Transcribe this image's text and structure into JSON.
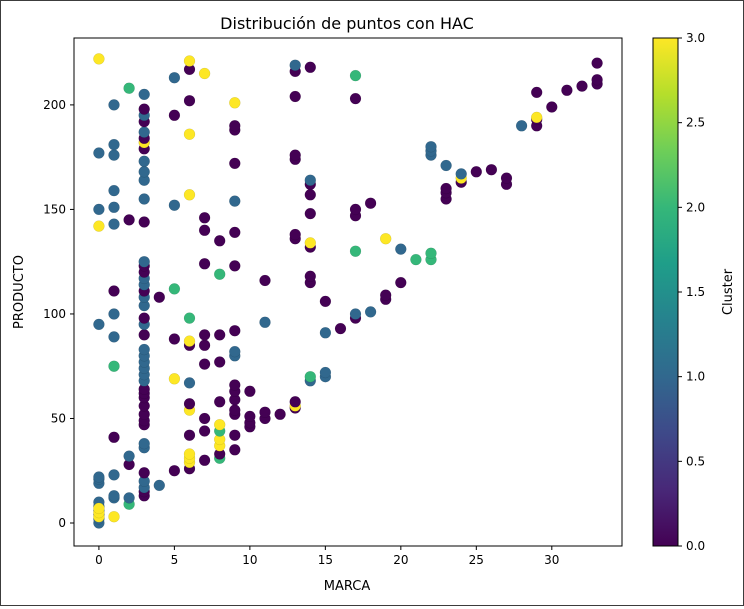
{
  "chart_data": {
    "type": "scatter",
    "title": "Distribución de puntos con HAC",
    "xlabel": "MARCA",
    "ylabel": "PRODUCTO",
    "xlim": [
      -1.65,
      34.65
    ],
    "ylim": [
      -11,
      232
    ],
    "xticks": [
      0,
      5,
      10,
      15,
      20,
      25,
      30
    ],
    "yticks": [
      0,
      50,
      100,
      150,
      200
    ],
    "grid": false,
    "colormap": "viridis",
    "colorbar": {
      "label": "Cluster",
      "range": [
        0,
        3
      ],
      "ticks": [
        "0.0",
        "0.5",
        "1.0",
        "1.5",
        "2.0",
        "2.5",
        "3.0"
      ]
    },
    "cluster_colors": [
      "#440154",
      "#31688e",
      "#35b779",
      "#fde725"
    ],
    "points": [
      [
        0,
        0,
        1
      ],
      [
        0,
        2,
        1
      ],
      [
        0,
        4,
        1
      ],
      [
        0,
        6,
        1
      ],
      [
        0,
        8,
        1
      ],
      [
        0,
        10,
        1
      ],
      [
        0,
        19,
        1
      ],
      [
        0,
        21,
        1
      ],
      [
        0,
        22,
        1
      ],
      [
        0,
        95,
        1
      ],
      [
        0,
        150,
        1
      ],
      [
        0,
        177,
        1
      ],
      [
        0,
        3,
        3
      ],
      [
        0,
        5,
        3
      ],
      [
        0,
        7,
        3
      ],
      [
        0,
        142,
        3
      ],
      [
        0,
        222,
        3
      ],
      [
        1,
        3,
        3
      ],
      [
        1,
        12,
        1
      ],
      [
        1,
        13,
        1
      ],
      [
        1,
        23,
        1
      ],
      [
        1,
        41,
        0
      ],
      [
        1,
        75,
        2
      ],
      [
        1,
        89,
        1
      ],
      [
        1,
        100,
        1
      ],
      [
        1,
        111,
        0
      ],
      [
        1,
        143,
        1
      ],
      [
        1,
        151,
        1
      ],
      [
        1,
        159,
        1
      ],
      [
        1,
        176,
        1
      ],
      [
        1,
        181,
        1
      ],
      [
        1,
        200,
        1
      ],
      [
        2,
        9,
        2
      ],
      [
        2,
        12,
        1
      ],
      [
        2,
        28,
        0
      ],
      [
        2,
        32,
        1
      ],
      [
        2,
        145,
        0
      ],
      [
        2,
        208,
        2
      ],
      [
        3,
        13,
        0
      ],
      [
        3,
        15,
        0
      ],
      [
        3,
        17,
        1
      ],
      [
        3,
        20,
        1
      ],
      [
        3,
        24,
        0
      ],
      [
        3,
        36,
        1
      ],
      [
        3,
        38,
        1
      ],
      [
        3,
        47,
        0
      ],
      [
        3,
        49,
        0
      ],
      [
        3,
        52,
        0
      ],
      [
        3,
        56,
        0
      ],
      [
        3,
        60,
        0
      ],
      [
        3,
        62,
        0
      ],
      [
        3,
        64,
        0
      ],
      [
        3,
        68,
        1
      ],
      [
        3,
        71,
        1
      ],
      [
        3,
        74,
        1
      ],
      [
        3,
        77,
        1
      ],
      [
        3,
        80,
        1
      ],
      [
        3,
        83,
        1
      ],
      [
        3,
        90,
        0
      ],
      [
        3,
        95,
        1
      ],
      [
        3,
        98,
        0
      ],
      [
        3,
        104,
        1
      ],
      [
        3,
        108,
        1
      ],
      [
        3,
        111,
        0
      ],
      [
        3,
        114,
        1
      ],
      [
        3,
        117,
        1
      ],
      [
        3,
        120,
        0
      ],
      [
        3,
        123,
        0
      ],
      [
        3,
        125,
        1
      ],
      [
        3,
        144,
        0
      ],
      [
        3,
        155,
        1
      ],
      [
        3,
        164,
        1
      ],
      [
        3,
        168,
        1
      ],
      [
        3,
        173,
        1
      ],
      [
        3,
        179,
        0
      ],
      [
        3,
        182,
        3
      ],
      [
        3,
        184,
        0
      ],
      [
        3,
        187,
        1
      ],
      [
        3,
        192,
        0
      ],
      [
        3,
        195,
        1
      ],
      [
        3,
        198,
        0
      ],
      [
        3,
        205,
        1
      ],
      [
        4,
        18,
        1
      ],
      [
        4,
        108,
        0
      ],
      [
        5,
        25,
        0
      ],
      [
        5,
        69,
        3
      ],
      [
        5,
        88,
        0
      ],
      [
        5,
        112,
        2
      ],
      [
        5,
        152,
        1
      ],
      [
        5,
        195,
        0
      ],
      [
        5,
        213,
        1
      ],
      [
        6,
        26,
        0
      ],
      [
        6,
        29,
        3
      ],
      [
        6,
        31,
        3
      ],
      [
        6,
        33,
        3
      ],
      [
        6,
        42,
        0
      ],
      [
        6,
        54,
        3
      ],
      [
        6,
        57,
        0
      ],
      [
        6,
        67,
        1
      ],
      [
        6,
        85,
        0
      ],
      [
        6,
        87,
        3
      ],
      [
        6,
        98,
        2
      ],
      [
        6,
        157,
        3
      ],
      [
        6,
        186,
        3
      ],
      [
        6,
        202,
        0
      ],
      [
        6,
        217,
        0
      ],
      [
        6,
        221,
        3
      ],
      [
        7,
        30,
        0
      ],
      [
        7,
        44,
        0
      ],
      [
        7,
        50,
        0
      ],
      [
        7,
        76,
        0
      ],
      [
        7,
        85,
        0
      ],
      [
        7,
        90,
        0
      ],
      [
        7,
        124,
        0
      ],
      [
        7,
        140,
        0
      ],
      [
        7,
        146,
        0
      ],
      [
        7,
        215,
        3
      ],
      [
        8,
        31,
        2
      ],
      [
        8,
        33,
        0
      ],
      [
        8,
        37,
        3
      ],
      [
        8,
        40,
        3
      ],
      [
        8,
        44,
        2
      ],
      [
        8,
        47,
        3
      ],
      [
        8,
        58,
        0
      ],
      [
        8,
        77,
        0
      ],
      [
        8,
        90,
        0
      ],
      [
        8,
        119,
        2
      ],
      [
        8,
        135,
        0
      ],
      [
        9,
        35,
        0
      ],
      [
        9,
        42,
        0
      ],
      [
        9,
        52,
        0
      ],
      [
        9,
        54,
        0
      ],
      [
        9,
        59,
        0
      ],
      [
        9,
        63,
        0
      ],
      [
        9,
        66,
        0
      ],
      [
        9,
        80,
        1
      ],
      [
        9,
        82,
        1
      ],
      [
        9,
        92,
        0
      ],
      [
        9,
        123,
        0
      ],
      [
        9,
        139,
        0
      ],
      [
        9,
        154,
        1
      ],
      [
        9,
        172,
        0
      ],
      [
        9,
        188,
        0
      ],
      [
        9,
        190,
        0
      ],
      [
        9,
        201,
        3
      ],
      [
        10,
        46,
        0
      ],
      [
        10,
        48,
        0
      ],
      [
        10,
        51,
        0
      ],
      [
        10,
        63,
        0
      ],
      [
        11,
        50,
        0
      ],
      [
        11,
        53,
        0
      ],
      [
        11,
        96,
        1
      ],
      [
        11,
        116,
        0
      ],
      [
        12,
        52,
        0
      ],
      [
        13,
        55,
        0
      ],
      [
        13,
        56,
        3
      ],
      [
        13,
        58,
        0
      ],
      [
        13,
        136,
        0
      ],
      [
        13,
        138,
        0
      ],
      [
        13,
        174,
        0
      ],
      [
        13,
        176,
        0
      ],
      [
        13,
        204,
        0
      ],
      [
        13,
        216,
        0
      ],
      [
        13,
        219,
        1
      ],
      [
        14,
        68,
        1
      ],
      [
        14,
        70,
        2
      ],
      [
        14,
        115,
        0
      ],
      [
        14,
        118,
        0
      ],
      [
        14,
        132,
        0
      ],
      [
        14,
        134,
        3
      ],
      [
        14,
        148,
        0
      ],
      [
        14,
        157,
        0
      ],
      [
        14,
        162,
        0
      ],
      [
        14,
        164,
        1
      ],
      [
        14,
        218,
        0
      ],
      [
        15,
        70,
        1
      ],
      [
        15,
        72,
        1
      ],
      [
        15,
        91,
        1
      ],
      [
        15,
        106,
        0
      ],
      [
        16,
        93,
        0
      ],
      [
        17,
        98,
        0
      ],
      [
        17,
        100,
        1
      ],
      [
        17,
        130,
        2
      ],
      [
        17,
        147,
        0
      ],
      [
        17,
        150,
        0
      ],
      [
        17,
        203,
        0
      ],
      [
        17,
        214,
        2
      ],
      [
        18,
        101,
        1
      ],
      [
        18,
        153,
        0
      ],
      [
        19,
        107,
        0
      ],
      [
        19,
        109,
        0
      ],
      [
        19,
        136,
        3
      ],
      [
        20,
        115,
        0
      ],
      [
        20,
        131,
        1
      ],
      [
        21,
        126,
        2
      ],
      [
        22,
        126,
        2
      ],
      [
        22,
        129,
        2
      ],
      [
        22,
        176,
        1
      ],
      [
        22,
        178,
        1
      ],
      [
        22,
        180,
        1
      ],
      [
        23,
        155,
        0
      ],
      [
        23,
        158,
        0
      ],
      [
        23,
        160,
        0
      ],
      [
        23,
        171,
        1
      ],
      [
        24,
        163,
        0
      ],
      [
        24,
        165,
        3
      ],
      [
        24,
        167,
        1
      ],
      [
        25,
        168,
        0
      ],
      [
        26,
        169,
        0
      ],
      [
        27,
        162,
        0
      ],
      [
        27,
        165,
        0
      ],
      [
        28,
        190,
        1
      ],
      [
        29,
        190,
        0
      ],
      [
        29,
        193,
        0
      ],
      [
        29,
        194,
        3
      ],
      [
        29,
        206,
        0
      ],
      [
        30,
        199,
        0
      ],
      [
        31,
        207,
        0
      ],
      [
        32,
        209,
        0
      ],
      [
        33,
        210,
        0
      ],
      [
        33,
        212,
        0
      ],
      [
        33,
        220,
        0
      ]
    ]
  }
}
